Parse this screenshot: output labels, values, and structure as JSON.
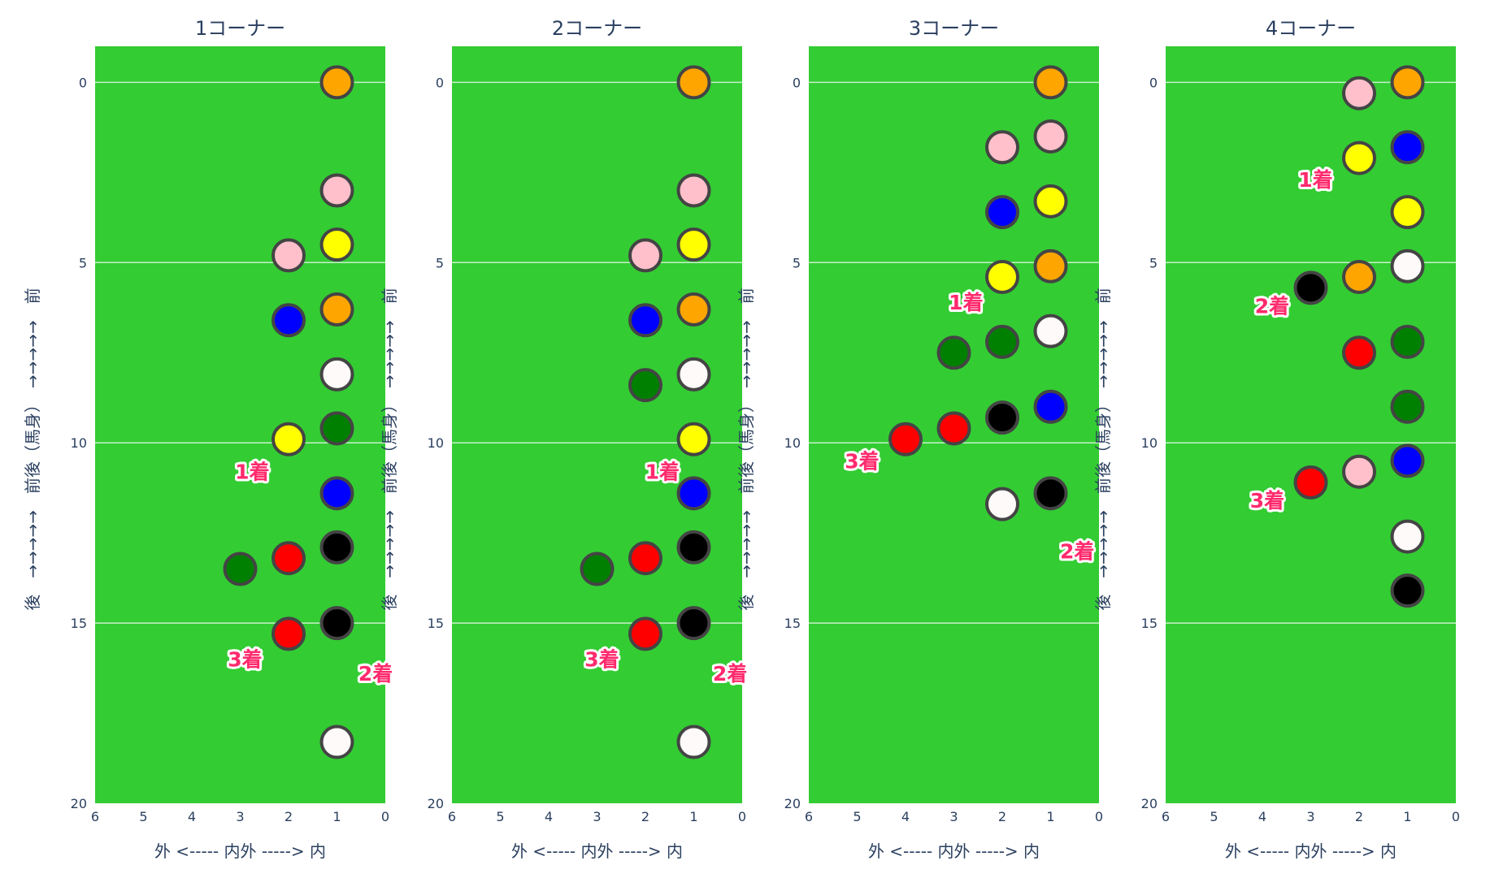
{
  "chart_data": {
    "type": "scatter",
    "xaxis": {
      "label": "外 <-----  内外  -----> 内",
      "range": [
        6,
        0
      ],
      "ticks": [
        "6",
        "5",
        "4",
        "3",
        "2",
        "1",
        "0"
      ],
      "reversed": true
    },
    "yaxis": {
      "label": "後　→→→→→　前後（馬身）　→→→→→　前",
      "range": [
        20,
        -1
      ],
      "ticks": [
        "0",
        "5",
        "10",
        "15",
        "20"
      ],
      "reversed": true
    },
    "grid": true,
    "background_color": "#33cc33",
    "marker_outline_color": "#444444",
    "panels": [
      {
        "title": "1コーナー",
        "points": [
          {
            "x": 1,
            "y": 0,
            "color": "#ffa500"
          },
          {
            "x": 1,
            "y": 3,
            "color": "#ffc0cb"
          },
          {
            "x": 1,
            "y": 4.5,
            "color": "#ffff00"
          },
          {
            "x": 2,
            "y": 4.8,
            "color": "#ffc0cb"
          },
          {
            "x": 1,
            "y": 6.3,
            "color": "#ffa500"
          },
          {
            "x": 2,
            "y": 6.6,
            "color": "#0000ff"
          },
          {
            "x": 1,
            "y": 8.1,
            "color": "#fffafa"
          },
          {
            "x": 1,
            "y": 9.6,
            "color": "#008000"
          },
          {
            "x": 2,
            "y": 9.9,
            "color": "#ffff00"
          },
          {
            "x": 1,
            "y": 11.4,
            "color": "#0000ff"
          },
          {
            "x": 1,
            "y": 12.9,
            "color": "#000000"
          },
          {
            "x": 2,
            "y": 13.2,
            "color": "#ff0000"
          },
          {
            "x": 3,
            "y": 13.5,
            "color": "#008000"
          },
          {
            "x": 1,
            "y": 15,
            "color": "#000000"
          },
          {
            "x": 2,
            "y": 15.3,
            "color": "#ff0000"
          },
          {
            "x": 1,
            "y": 18.3,
            "color": "#fffafa"
          }
        ],
        "annotations": [
          {
            "text": "1着",
            "x": 2.75,
            "y": 10.8
          },
          {
            "text": "3着",
            "x": 2.9,
            "y": 16.0
          },
          {
            "text": "2着",
            "x": 0.2,
            "y": 16.4
          }
        ]
      },
      {
        "title": "2コーナー",
        "points": [
          {
            "x": 1,
            "y": 0,
            "color": "#ffa500"
          },
          {
            "x": 1,
            "y": 3,
            "color": "#ffc0cb"
          },
          {
            "x": 1,
            "y": 4.5,
            "color": "#ffff00"
          },
          {
            "x": 2,
            "y": 4.8,
            "color": "#ffc0cb"
          },
          {
            "x": 1,
            "y": 6.3,
            "color": "#ffa500"
          },
          {
            "x": 2,
            "y": 6.6,
            "color": "#0000ff"
          },
          {
            "x": 1,
            "y": 8.1,
            "color": "#fffafa"
          },
          {
            "x": 2,
            "y": 8.4,
            "color": "#008000"
          },
          {
            "x": 1,
            "y": 9.9,
            "color": "#ffff00"
          },
          {
            "x": 1,
            "y": 11.4,
            "color": "#0000ff"
          },
          {
            "x": 1,
            "y": 12.9,
            "color": "#000000"
          },
          {
            "x": 2,
            "y": 13.2,
            "color": "#ff0000"
          },
          {
            "x": 3,
            "y": 13.5,
            "color": "#008000"
          },
          {
            "x": 1,
            "y": 15,
            "color": "#000000"
          },
          {
            "x": 2,
            "y": 15.3,
            "color": "#ff0000"
          },
          {
            "x": 1,
            "y": 18.3,
            "color": "#fffafa"
          }
        ],
        "annotations": [
          {
            "text": "1着",
            "x": 1.65,
            "y": 10.8
          },
          {
            "text": "3着",
            "x": 2.9,
            "y": 16.0
          },
          {
            "text": "2着",
            "x": 0.25,
            "y": 16.4
          }
        ]
      },
      {
        "title": "3コーナー",
        "points": [
          {
            "x": 1,
            "y": 0,
            "color": "#ffa500"
          },
          {
            "x": 1,
            "y": 1.5,
            "color": "#ffc0cb"
          },
          {
            "x": 2,
            "y": 1.8,
            "color": "#ffc0cb"
          },
          {
            "x": 1,
            "y": 3.3,
            "color": "#ffff00"
          },
          {
            "x": 2,
            "y": 3.6,
            "color": "#0000ff"
          },
          {
            "x": 1,
            "y": 5.1,
            "color": "#ffa500"
          },
          {
            "x": 2,
            "y": 5.4,
            "color": "#ffff00"
          },
          {
            "x": 1,
            "y": 6.9,
            "color": "#fffafa"
          },
          {
            "x": 2,
            "y": 7.2,
            "color": "#008000"
          },
          {
            "x": 3,
            "y": 7.5,
            "color": "#008000"
          },
          {
            "x": 1,
            "y": 9,
            "color": "#0000ff"
          },
          {
            "x": 2,
            "y": 9.3,
            "color": "#000000"
          },
          {
            "x": 3,
            "y": 9.6,
            "color": "#ff0000"
          },
          {
            "x": 4,
            "y": 9.9,
            "color": "#ff0000"
          },
          {
            "x": 1,
            "y": 11.4,
            "color": "#000000"
          },
          {
            "x": 2,
            "y": 11.7,
            "color": "#fffafa"
          }
        ],
        "annotations": [
          {
            "text": "1着",
            "x": 2.75,
            "y": 6.1
          },
          {
            "text": "3着",
            "x": 4.9,
            "y": 10.5
          },
          {
            "text": "2着",
            "x": 0.45,
            "y": 13.0
          }
        ]
      },
      {
        "title": "4コーナー",
        "points": [
          {
            "x": 1,
            "y": 0,
            "color": "#ffa500"
          },
          {
            "x": 2,
            "y": 0.3,
            "color": "#ffc0cb"
          },
          {
            "x": 1,
            "y": 1.8,
            "color": "#0000ff"
          },
          {
            "x": 2,
            "y": 2.1,
            "color": "#ffff00"
          },
          {
            "x": 1,
            "y": 3.6,
            "color": "#ffff00"
          },
          {
            "x": 1,
            "y": 5.1,
            "color": "#fffafa"
          },
          {
            "x": 2,
            "y": 5.4,
            "color": "#ffa500"
          },
          {
            "x": 3,
            "y": 5.7,
            "color": "#000000"
          },
          {
            "x": 1,
            "y": 7.2,
            "color": "#008000"
          },
          {
            "x": 2,
            "y": 7.5,
            "color": "#ff0000"
          },
          {
            "x": 1,
            "y": 9,
            "color": "#008000"
          },
          {
            "x": 1,
            "y": 10.5,
            "color": "#0000ff"
          },
          {
            "x": 2,
            "y": 10.8,
            "color": "#ffc0cb"
          },
          {
            "x": 3,
            "y": 11.1,
            "color": "#ff0000"
          },
          {
            "x": 1,
            "y": 12.6,
            "color": "#fffafa"
          },
          {
            "x": 1,
            "y": 14.1,
            "color": "#000000"
          }
        ],
        "annotations": [
          {
            "text": "1着",
            "x": 2.9,
            "y": 2.7
          },
          {
            "text": "2着",
            "x": 3.8,
            "y": 6.2
          },
          {
            "text": "3着",
            "x": 3.9,
            "y": 11.6
          }
        ]
      }
    ]
  }
}
